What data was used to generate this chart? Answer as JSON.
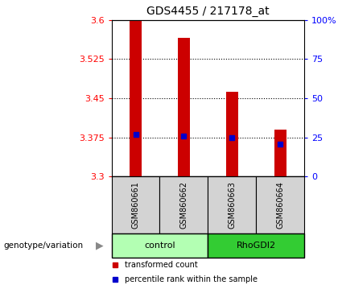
{
  "title": "GDS4455 / 217178_at",
  "samples": [
    "GSM860661",
    "GSM860662",
    "GSM860663",
    "GSM860664"
  ],
  "groups": [
    "control",
    "control",
    "RhoGDI2",
    "RhoGDI2"
  ],
  "bar_values": [
    3.6,
    3.565,
    3.462,
    3.39
  ],
  "percentile_values": [
    3.381,
    3.378,
    3.375,
    3.362
  ],
  "ymin": 3.3,
  "ymax": 3.6,
  "yticks_left": [
    3.3,
    3.375,
    3.45,
    3.525,
    3.6
  ],
  "ytick_labels_left": [
    "3.3",
    "3.375",
    "3.45",
    "3.525",
    "3.6"
  ],
  "yticks_right": [
    0,
    25,
    50,
    75,
    100
  ],
  "ytick_labels_right": [
    "0",
    "25",
    "50",
    "75",
    "100%"
  ],
  "bar_color": "#cc0000",
  "percentile_color": "#0000cc",
  "group_colors": {
    "control": "#b3ffb3",
    "RhoGDI2": "#33cc33"
  },
  "group_label": "genotype/variation",
  "legend_red": "transformed count",
  "legend_blue": "percentile rank within the sample",
  "bar_width": 0.25
}
